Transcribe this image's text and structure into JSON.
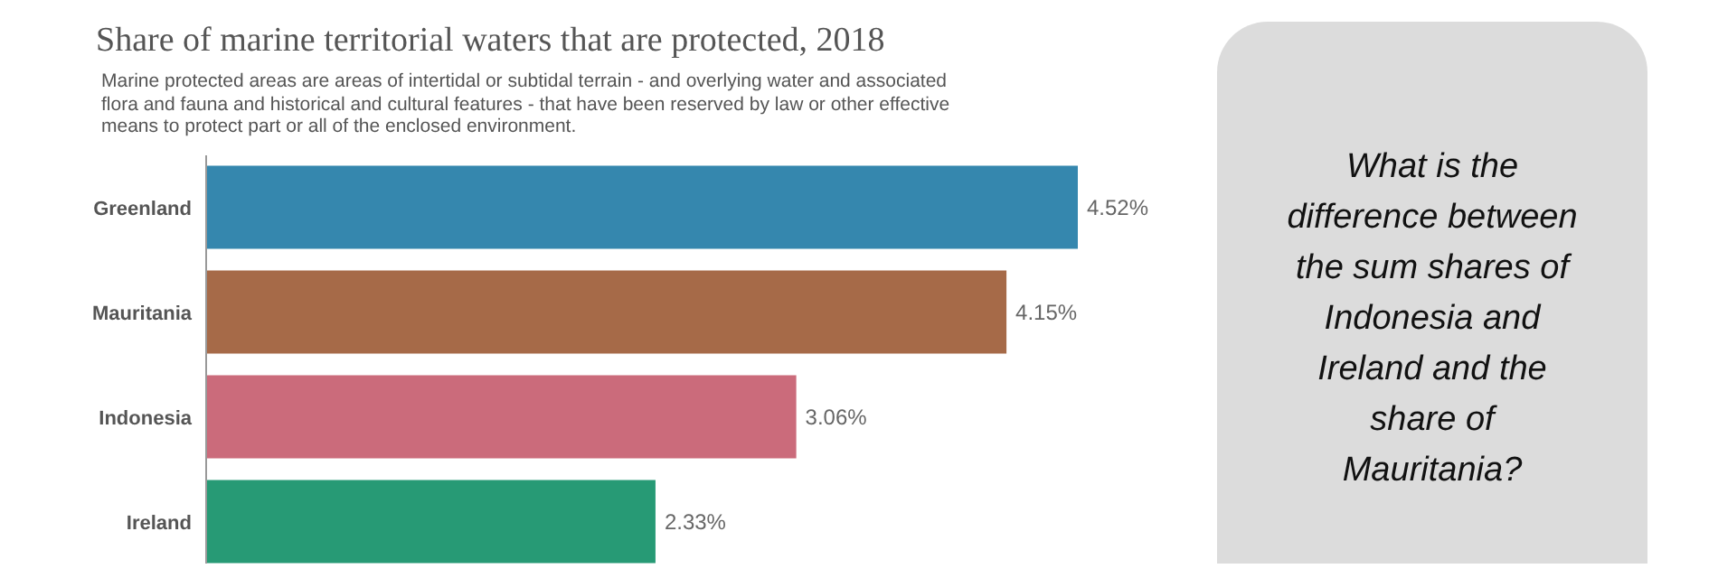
{
  "chart_data": [
    {
      "type": "bar",
      "orientation": "horizontal",
      "title": "Share of marine territorial waters that are protected, 2018",
      "subtitle": "Marine protected areas are areas of intertidal or subtidal terrain - and overlying water and associated flora and fauna and historical and cultural features - that have been reserved by law or other effective means to protect part or all of the enclosed environment.",
      "categories": [
        "Greenland",
        "Mauritania",
        "Indonesia",
        "Ireland"
      ],
      "values": [
        4.52,
        4.15,
        3.06,
        2.33
      ],
      "colors": [
        "#3587ae",
        "#a66a48",
        "#cb6b7b",
        "#279a75"
      ],
      "value_labels": [
        "4.52%",
        "4.15%",
        "3.06%",
        "2.33%"
      ],
      "tick_labels": "y",
      "legend": false
    },
    {
      "type": "other",
      "annotations": [
        "What is the difference between the sum shares of Indonesia and Ireland and the share of Mauritania?"
      ]
    }
  ]
}
